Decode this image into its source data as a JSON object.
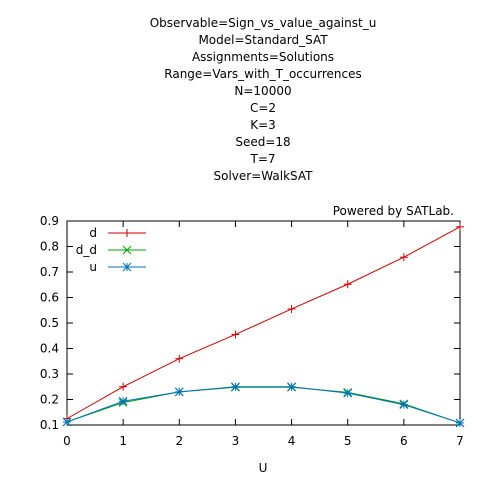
{
  "chart_data": {
    "type": "line",
    "title_lines": [
      "Observable=Sign_vs_value_against_u",
      "Model=Standard_SAT",
      "Assignments=Solutions",
      "Range=Vars_with_T_occurrences",
      "N=10000",
      "C=2",
      "K=3",
      "Seed=18",
      "T=7",
      "Solver=WalkSAT"
    ],
    "annotation": "Powered by SATLab.",
    "xlabel": "U",
    "ylabel": "",
    "xlim": [
      0,
      7
    ],
    "ylim": [
      0.1,
      0.9
    ],
    "xticks": [
      "0",
      "1",
      "2",
      "3",
      "4",
      "5",
      "6",
      "7"
    ],
    "yticks": [
      "0.1",
      "0.2",
      "0.3",
      "0.4",
      "0.5",
      "0.6",
      "0.7",
      "0.8",
      "0.9"
    ],
    "grid": false,
    "legend_position": "top-left",
    "x": [
      0,
      1,
      2,
      3,
      4,
      5,
      6,
      7
    ],
    "series": [
      {
        "name": "d",
        "color": "#cc0000",
        "marker": "plus",
        "values": [
          0.125,
          0.25,
          0.36,
          0.455,
          0.555,
          0.652,
          0.758,
          0.877
        ]
      },
      {
        "name": "d_d",
        "color": "#00a000",
        "marker": "cross",
        "values": [
          0.112,
          0.188,
          0.23,
          0.248,
          0.248,
          0.228,
          0.183,
          0.108
        ]
      },
      {
        "name": "u",
        "color": "#0070c0",
        "marker": "star",
        "values": [
          0.112,
          0.193,
          0.23,
          0.25,
          0.25,
          0.225,
          0.18,
          0.108
        ]
      }
    ]
  }
}
